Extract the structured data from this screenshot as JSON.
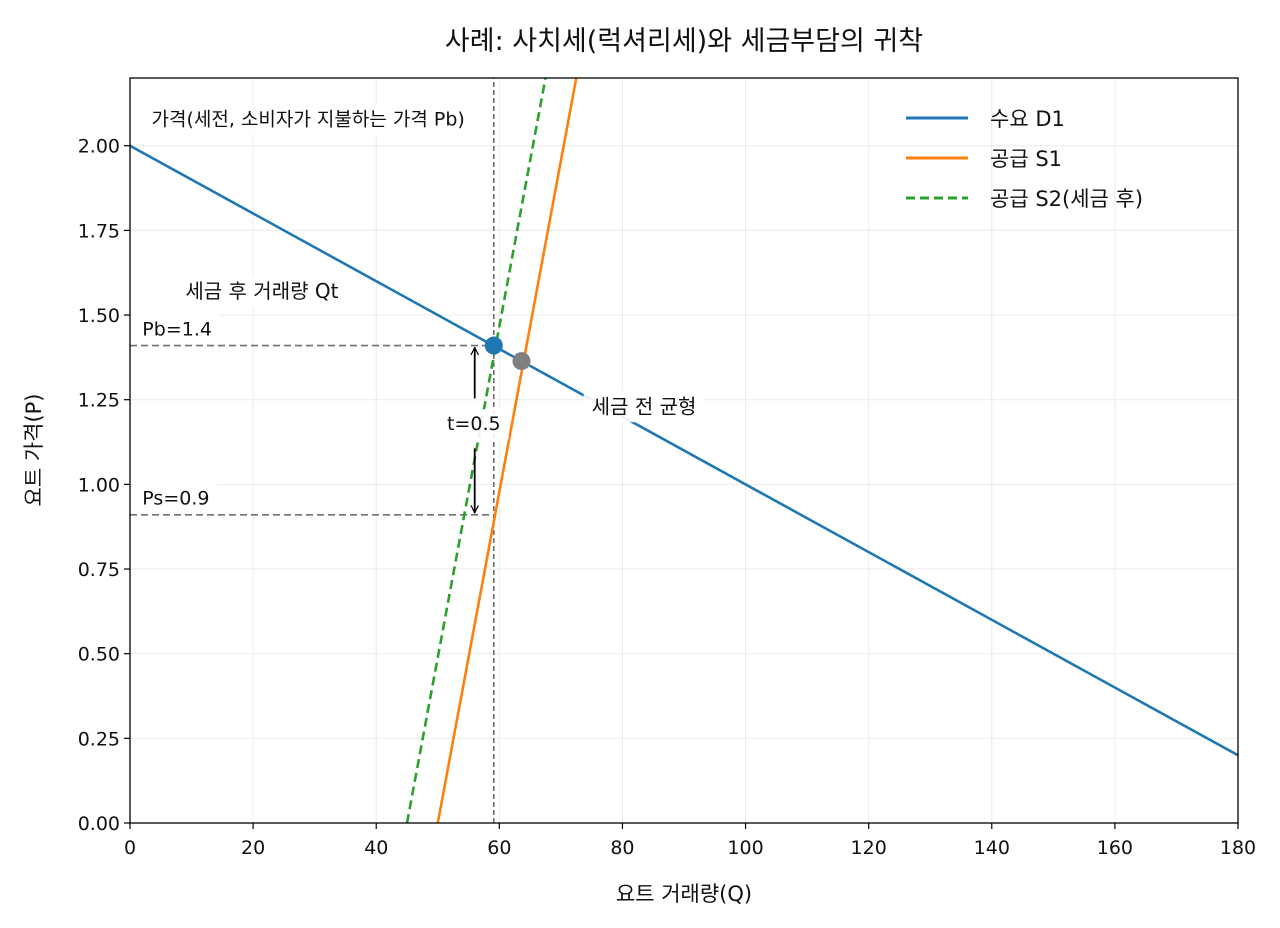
{
  "chart_data": {
    "type": "line",
    "title": "사례: 사치세(럭셔리세)와 세금부담의 귀착",
    "xlabel": "요트 거래량(Q)",
    "ylabel": "요트 가격(P)",
    "xlim": [
      0,
      180
    ],
    "ylim": [
      0,
      2.2
    ],
    "xticks": [
      0,
      20,
      40,
      60,
      80,
      100,
      120,
      140,
      160,
      180
    ],
    "yticks": [
      0.0,
      0.25,
      0.5,
      0.75,
      1.0,
      1.25,
      1.5,
      1.75,
      2.0
    ],
    "xtick_labels": [
      "0",
      "20",
      "40",
      "60",
      "80",
      "100",
      "120",
      "140",
      "160",
      "180"
    ],
    "ytick_labels": [
      "0.00",
      "0.25",
      "0.50",
      "0.75",
      "1.00",
      "1.25",
      "1.50",
      "1.75",
      "2.00"
    ],
    "grid": true,
    "legend_position": "top-right",
    "series": [
      {
        "name": "수요 D1",
        "color": "#1f77b4",
        "style": "solid",
        "x": [
          0,
          180
        ],
        "y": [
          2.0,
          0.2
        ]
      },
      {
        "name": "공급 S1",
        "color": "#ff7f0e",
        "style": "solid",
        "x": [
          50,
          72.5
        ],
        "y": [
          0.0,
          2.2
        ]
      },
      {
        "name": "공급 S2(세금 후)",
        "color": "#2ca02c",
        "style": "dashed",
        "x": [
          45,
          67.5
        ],
        "y": [
          0.0,
          2.2
        ]
      }
    ],
    "points": [
      {
        "name": "after-tax-equilibrium",
        "x": 59.1,
        "y": 1.41,
        "color": "#1f77b4"
      },
      {
        "name": "pre-tax-equilibrium",
        "x": 63.6,
        "y": 1.364,
        "color": "#808080"
      }
    ],
    "reference_lines": {
      "qt_vertical": {
        "x": 59.1,
        "y_from": 0.0,
        "y_to": 2.2,
        "color": "#707070"
      },
      "pb_horizontal": {
        "y": 1.41,
        "x_from": 0,
        "x_to": 59.1,
        "color": "#707070"
      },
      "ps_horizontal": {
        "y": 0.91,
        "x_from": 0,
        "x_to": 59.1,
        "color": "#707070"
      }
    },
    "tax_arrows": {
      "x": 56,
      "y_top": 1.41,
      "y_bottom": 0.91,
      "y_label": 1.18
    },
    "annotations": {
      "price_note": {
        "text": "가격(세전, 소비자가 지불하는 가격 Pb)",
        "x": 3.5,
        "y": 2.06
      },
      "qt_label": {
        "text": "세금 후 거래량 Qt",
        "x": 9,
        "y": 1.55
      },
      "pb_label": {
        "text": "Pb=1.4",
        "x": 2,
        "y": 1.44
      },
      "ps_label": {
        "text": "Ps=0.9",
        "x": 2,
        "y": 0.94
      },
      "tax_label": {
        "text": "t=0.5",
        "x": 51.5,
        "y": 1.16
      },
      "pre_tax_label": {
        "text": "세금 전 균형",
        "x": 75,
        "y": 1.21
      }
    }
  }
}
